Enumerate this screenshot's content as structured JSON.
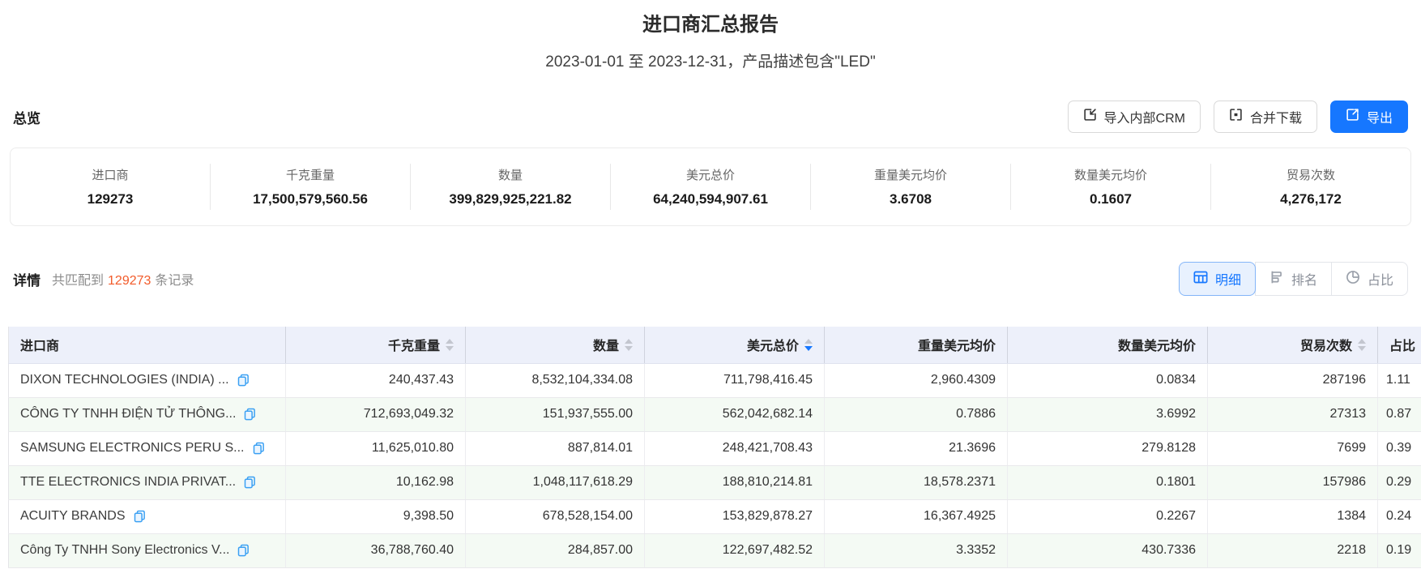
{
  "page": {
    "title": "进口商汇总报告",
    "subtitle": "2023-01-01 至 2023-12-31，产品描述包含\"LED\""
  },
  "overview": {
    "heading": "总览",
    "buttons": {
      "import_crm": "导入内部CRM",
      "merge_download": "合并下载",
      "export": "导出"
    },
    "stats": [
      {
        "label": "进口商",
        "value": "129273"
      },
      {
        "label": "千克重量",
        "value": "17,500,579,560.56"
      },
      {
        "label": "数量",
        "value": "399,829,925,221.82"
      },
      {
        "label": "美元总价",
        "value": "64,240,594,907.61"
      },
      {
        "label": "重量美元均价",
        "value": "3.6708"
      },
      {
        "label": "数量美元均价",
        "value": "0.1607"
      },
      {
        "label": "贸易次数",
        "value": "4,276,172"
      }
    ]
  },
  "details": {
    "heading": "详情",
    "match_prefix": "共匹配到",
    "match_count": "129273",
    "match_suffix": "条记录",
    "tabs": [
      {
        "key": "detail",
        "label": "明细",
        "icon": "table-icon",
        "active": true
      },
      {
        "key": "ranking",
        "label": "排名",
        "icon": "rank-icon",
        "active": false
      },
      {
        "key": "proportion",
        "label": "占比",
        "icon": "pie-icon",
        "active": false
      }
    ]
  },
  "table": {
    "columns": [
      {
        "label": "进口商",
        "sortable": false,
        "sorted": null
      },
      {
        "label": "千克重量",
        "sortable": true,
        "sorted": null
      },
      {
        "label": "数量",
        "sortable": true,
        "sorted": null
      },
      {
        "label": "美元总价",
        "sortable": true,
        "sorted": "desc"
      },
      {
        "label": "重量美元均价",
        "sortable": false,
        "sorted": null
      },
      {
        "label": "数量美元均价",
        "sortable": false,
        "sorted": null
      },
      {
        "label": "贸易次数",
        "sortable": true,
        "sorted": null
      },
      {
        "label": "占比",
        "sortable": false,
        "sorted": null
      }
    ],
    "rows": [
      [
        "DIXON TECHNOLOGIES (INDIA) ...",
        "240,437.43",
        "8,532,104,334.08",
        "711,798,416.45",
        "2,960.4309",
        "0.0834",
        "287196",
        "1.11"
      ],
      [
        "CÔNG TY TNHH ĐIỆN TỬ THÔNG...",
        "712,693,049.32",
        "151,937,555.00",
        "562,042,682.14",
        "0.7886",
        "3.6992",
        "27313",
        "0.87"
      ],
      [
        "SAMSUNG ELECTRONICS PERU S...",
        "11,625,010.80",
        "887,814.01",
        "248,421,708.43",
        "21.3696",
        "279.8128",
        "7699",
        "0.39"
      ],
      [
        "TTE ELECTRONICS INDIA PRIVAT...",
        "10,162.98",
        "1,048,117,618.29",
        "188,810,214.81",
        "18,578.2371",
        "0.1801",
        "157986",
        "0.29"
      ],
      [
        "ACUITY BRANDS",
        "9,398.50",
        "678,528,154.00",
        "153,829,878.27",
        "16,367.4925",
        "0.2267",
        "1384",
        "0.24"
      ],
      [
        "Công Ty TNHH Sony Electronics V...",
        "36,788,760.40",
        "284,857.00",
        "122,697,482.52",
        "3.3352",
        "430.7336",
        "2218",
        "0.19"
      ]
    ]
  },
  "colors": {
    "accent_blue": "#1677ff",
    "count_orange": "#f25b2a",
    "table_header_bg": "#edf0fa",
    "row_stripe": "#f4faf4",
    "export_button_bg": "#1677ff"
  }
}
